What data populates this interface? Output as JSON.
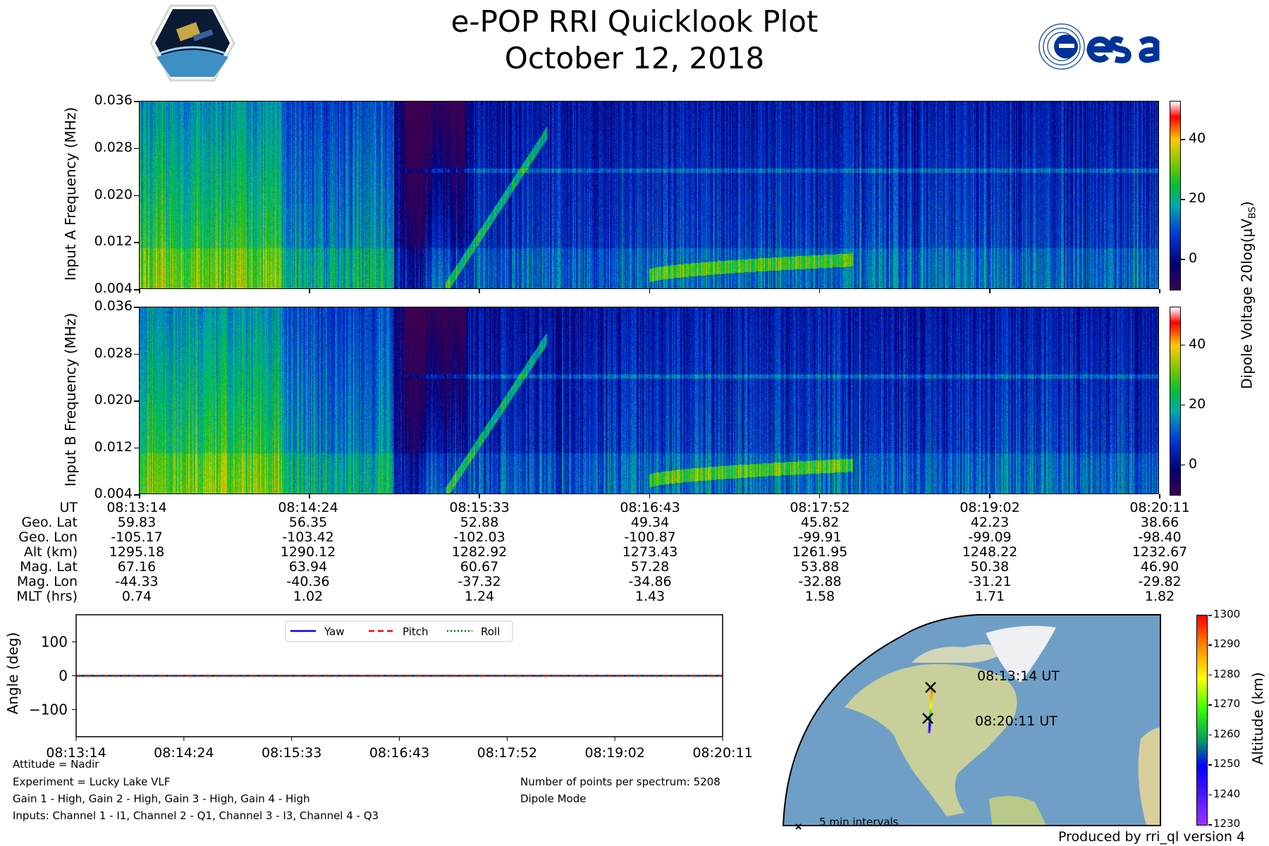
{
  "header": {
    "title": "e-POP RRI Quicklook Plot",
    "date": "October 12, 2018",
    "left_logo": "CASSIOPE",
    "right_logo": "esa"
  },
  "spectrograms": [
    {
      "ylabel": "Input A Frequency (MHz)",
      "yticks": [
        "0.036",
        "0.028",
        "0.020",
        "0.012",
        "0.004"
      ]
    },
    {
      "ylabel": "Input B Frequency (MHz)",
      "yticks": [
        "0.036",
        "0.028",
        "0.020",
        "0.012",
        "0.004"
      ]
    }
  ],
  "spectro_colorbar": {
    "label": "Dipole Voltage 20log(μV",
    "label_sub": "BS",
    "label_end": ")",
    "ticks": [
      "40",
      "20",
      "0"
    ],
    "range": [
      -10,
      52.7
    ]
  },
  "ephemeris": {
    "rows": [
      {
        "label": "UT",
        "values": [
          "08:13:14",
          "08:14:24",
          "08:15:33",
          "08:16:43",
          "08:17:52",
          "08:19:02",
          "08:20:11"
        ]
      },
      {
        "label": "Geo. Lat",
        "values": [
          "59.83",
          "56.35",
          "52.88",
          "49.34",
          "45.82",
          "42.23",
          "38.66"
        ]
      },
      {
        "label": "Geo. Lon",
        "values": [
          "-105.17",
          "-103.42",
          "-102.03",
          "-100.87",
          "-99.91",
          "-99.09",
          "-98.40"
        ]
      },
      {
        "label": "Alt (km)",
        "values": [
          "1295.18",
          "1290.12",
          "1282.92",
          "1273.43",
          "1261.95",
          "1248.22",
          "1232.67"
        ]
      },
      {
        "label": "Mag. Lat",
        "values": [
          "67.16",
          "63.94",
          "60.67",
          "57.28",
          "53.88",
          "50.38",
          "46.90"
        ]
      },
      {
        "label": "Mag. Lon",
        "values": [
          "-44.33",
          "-40.36",
          "-37.32",
          "-34.86",
          "-32.88",
          "-31.21",
          "-29.82"
        ]
      },
      {
        "label": "MLT (hrs)",
        "values": [
          "0.74",
          "1.02",
          "1.24",
          "1.43",
          "1.58",
          "1.71",
          "1.82"
        ]
      }
    ]
  },
  "chart_data": [
    {
      "type": "line",
      "title": "",
      "xlabel": "",
      "ylabel": "Angle (deg)",
      "x": [
        "08:13:14",
        "08:14:24",
        "08:15:33",
        "08:16:43",
        "08:17:52",
        "08:19:02",
        "08:20:11"
      ],
      "xticks": [
        "08:13:14",
        "08:14:24",
        "08:15:33",
        "08:16:43",
        "08:17:52",
        "08:19:02",
        "08:20:11"
      ],
      "yticks": [
        "100",
        "0",
        "−100"
      ],
      "ytick_values": [
        100,
        0,
        -100
      ],
      "ylim": [
        -180,
        180
      ],
      "legend_position": "top-center",
      "series": [
        {
          "name": "Yaw",
          "values": [
            0,
            0,
            0,
            0,
            0,
            0,
            0
          ],
          "color": "#0000ff",
          "style": "solid"
        },
        {
          "name": "Pitch",
          "values": [
            0,
            0,
            0,
            0,
            0,
            0,
            0
          ],
          "color": "#ff0000",
          "style": "dashed"
        },
        {
          "name": "Roll",
          "values": [
            0,
            0,
            0,
            0,
            0,
            0,
            0
          ],
          "color": "#008000",
          "style": "dotted"
        }
      ]
    }
  ],
  "notes": {
    "attitude": "Attitude = Nadir",
    "experiment": "Experiment = Lucky Lake VLF",
    "gains": "Gain 1 - High, Gain 2 - High, Gain 3 - High, Gain 4 - High",
    "inputs": "Inputs: Channel 1 - I1, Channel 2 - Q1, Channel 3 - I3, Channel 4 - Q3",
    "points": "Number of points per spectrum: 5208",
    "mode": "Dipole Mode"
  },
  "map": {
    "start_label": "08:13:14 UT",
    "end_label": "08:20:11 UT",
    "legend": "5 min intervals",
    "colorbar_label": "Altitude (km)",
    "colorbar_ticks": [
      "1300",
      "1290",
      "1280",
      "1270",
      "1260",
      "1250",
      "1240",
      "1230"
    ]
  },
  "footer": {
    "produced_by": "Produced by rri_ql version 4"
  },
  "colors": {
    "ocean": "#6f9fc6",
    "land": "#c9cf9a",
    "yaw": "#0000ff",
    "pitch": "#ff0000",
    "roll": "#008000"
  }
}
